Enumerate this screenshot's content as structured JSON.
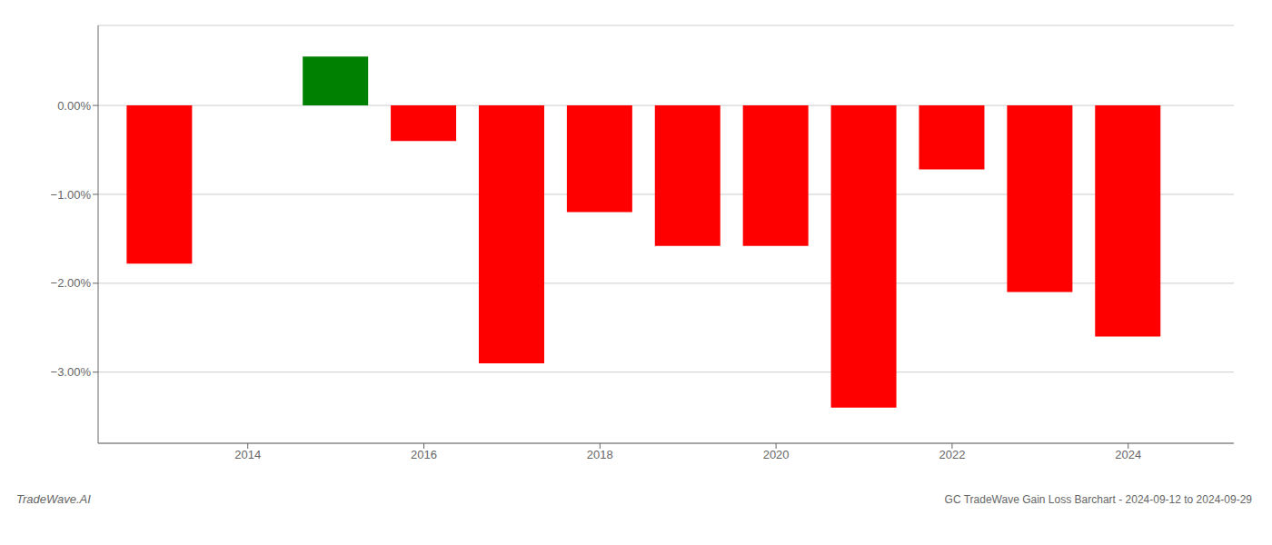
{
  "chart_data": {
    "type": "bar",
    "title": "GC TradeWave Gain Loss Barchart - 2024-09-12 to 2024-09-29",
    "annotations": [
      "TradeWave.AI"
    ],
    "x": [
      2013,
      2015,
      2016,
      2017,
      2018,
      2019,
      2020,
      2021,
      2022,
      2023,
      2024
    ],
    "values": [
      -1.78,
      0.55,
      -0.4,
      -2.9,
      -1.2,
      -1.58,
      -1.58,
      -3.4,
      -0.72,
      -2.1,
      -2.6
    ],
    "colors": [
      "#ff0000",
      "#008000",
      "#ff0000",
      "#ff0000",
      "#ff0000",
      "#ff0000",
      "#ff0000",
      "#ff0000",
      "#ff0000",
      "#ff0000",
      "#ff0000"
    ],
    "xlim": [
      2012.3,
      2025.2
    ],
    "xticks": [
      2014,
      2016,
      2018,
      2020,
      2022,
      2024
    ],
    "ylim": [
      -3.8,
      0.9
    ],
    "yticks": [
      {
        "value": 0.0,
        "label": "0.00%"
      },
      {
        "value": -1.0,
        "label": "−1.00%"
      },
      {
        "value": -2.0,
        "label": "−2.00%"
      },
      {
        "value": -3.0,
        "label": "−3.00%"
      }
    ],
    "grid": true
  }
}
